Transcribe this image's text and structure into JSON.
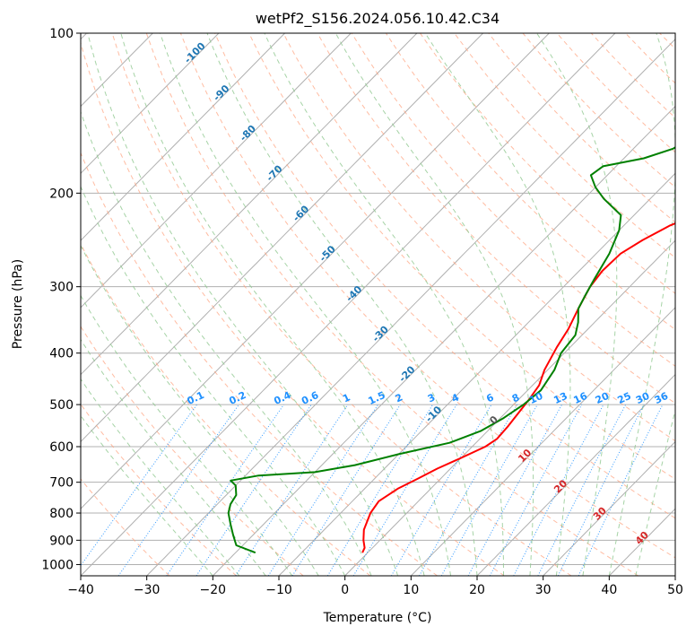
{
  "chart_data": {
    "type": "line",
    "title": "wetPf2_S156.2024.056.10.42.C34",
    "xlabel": "Temperature (°C)",
    "ylabel": "Pressure (hPa)",
    "xlim": [
      -40,
      50
    ],
    "ylim": [
      1050,
      100
    ],
    "y_scale": "log",
    "grid": true,
    "x_ticks": [
      -40,
      -30,
      -20,
      -10,
      0,
      10,
      20,
      30,
      40,
      50
    ],
    "y_ticks": [
      100,
      200,
      300,
      400,
      500,
      600,
      700,
      800,
      900,
      1000
    ],
    "series": [
      {
        "color": "#ff0000",
        "values": [
          [
            -0.8,
            950
          ],
          [
            -1.2,
            930
          ],
          [
            -2.5,
            900
          ],
          [
            -4.0,
            860
          ],
          [
            -5.5,
            800
          ],
          [
            -6.0,
            760
          ],
          [
            -5.0,
            720
          ],
          [
            -3.5,
            690
          ],
          [
            -2.0,
            660
          ],
          [
            0.0,
            630
          ],
          [
            2.0,
            600
          ],
          [
            2.6,
            580
          ],
          [
            2.4,
            550
          ],
          [
            2.0,
            520
          ],
          [
            1.6,
            490
          ],
          [
            1.0,
            460
          ],
          [
            -0.5,
            430
          ],
          [
            -2.0,
            390
          ],
          [
            -3.0,
            360
          ],
          [
            -4.5,
            330
          ],
          [
            -6.0,
            300
          ],
          [
            -6.5,
            280
          ],
          [
            -6.3,
            260
          ],
          [
            -5.0,
            245
          ],
          [
            -3.0,
            230
          ],
          [
            0.5,
            215
          ],
          [
            5.0,
            200
          ],
          [
            9.0,
            190
          ],
          [
            12.5,
            180
          ],
          [
            15.5,
            170
          ],
          [
            18.5,
            155
          ],
          [
            21.0,
            140
          ],
          [
            23.5,
            125
          ],
          [
            26.0,
            115
          ],
          [
            28.0,
            108
          ],
          [
            29.5,
            100
          ]
        ]
      },
      {
        "color": "#008000",
        "values": [
          [
            -17.0,
            950
          ],
          [
            -21.0,
            920
          ],
          [
            -23.0,
            880
          ],
          [
            -25.0,
            840
          ],
          [
            -27.0,
            800
          ],
          [
            -28.0,
            770
          ],
          [
            -28.5,
            740
          ],
          [
            -30.0,
            710
          ],
          [
            -31.5,
            695
          ],
          [
            -28.0,
            680
          ],
          [
            -20.0,
            670
          ],
          [
            -15.0,
            650
          ],
          [
            -10.0,
            620
          ],
          [
            -4.0,
            590
          ],
          [
            -1.0,
            560
          ],
          [
            0.5,
            530
          ],
          [
            1.5,
            500
          ],
          [
            2.0,
            470
          ],
          [
            1.0,
            430
          ],
          [
            -0.5,
            400
          ],
          [
            -1.0,
            370
          ],
          [
            -2.5,
            350
          ],
          [
            -4.5,
            330
          ],
          [
            -5.5,
            310
          ],
          [
            -6.5,
            290
          ],
          [
            -8.0,
            260
          ],
          [
            -10.0,
            235
          ],
          [
            -12.0,
            220
          ],
          [
            -17.0,
            205
          ],
          [
            -20.0,
            195
          ],
          [
            -22.5,
            185
          ],
          [
            -22.0,
            178
          ],
          [
            -17.0,
            172
          ],
          [
            -14.0,
            165
          ],
          [
            -12.5,
            155
          ],
          [
            -11.5,
            145
          ],
          [
            -9.5,
            135
          ],
          [
            -7.0,
            125
          ],
          [
            -4.5,
            115
          ],
          [
            -2.0,
            105
          ],
          [
            0.0,
            100
          ]
        ]
      }
    ],
    "dry_adiabat_labels": [
      "-100",
      "-90",
      "-80",
      "-70",
      "-60",
      "-50",
      "-40",
      "-30",
      "-20",
      "-10"
    ],
    "mixing_ratio_labels": [
      "0.1",
      "0.2",
      "0.4",
      "0.6",
      "1",
      "1.5",
      "2",
      "3",
      "4",
      "6",
      "8",
      "10",
      "13",
      "16",
      "20",
      "25",
      "30",
      "36"
    ],
    "moist_adiabat_labels": [
      "0",
      "10",
      "20",
      "30",
      "40"
    ],
    "colors": {
      "temperature": "#ff0000",
      "dewpoint": "#008000",
      "isotherm": "#b0b0b0",
      "dry_adiabat": "#ffa07a",
      "moist_adiabat": "#90c890",
      "mixing_ratio": "#1e90ff",
      "dry_label": "#1f77b4",
      "moist_label": "#d62728",
      "mixing_label": "#1e90ff"
    }
  }
}
